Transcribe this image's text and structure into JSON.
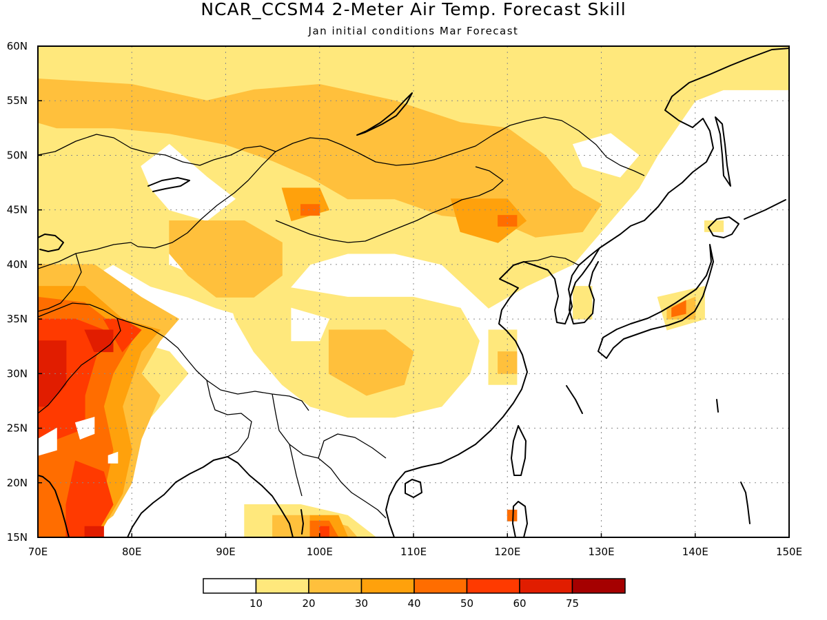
{
  "title": "NCAR_CCSM4 2-Meter Air Temp. Forecast Skill",
  "subtitle": "Jan initial conditions  Mar Forecast",
  "map": {
    "lon_range": [
      70,
      150
    ],
    "lat_range": [
      15,
      60
    ],
    "lon_ticks": [
      {
        "value": 70,
        "label": "70E"
      },
      {
        "value": 80,
        "label": "80E"
      },
      {
        "value": 90,
        "label": "90E"
      },
      {
        "value": 100,
        "label": "100E"
      },
      {
        "value": 110,
        "label": "110E"
      },
      {
        "value": 120,
        "label": "120E"
      },
      {
        "value": 130,
        "label": "130E"
      },
      {
        "value": 140,
        "label": "140E"
      },
      {
        "value": 150,
        "label": "150E"
      }
    ],
    "lat_ticks": [
      {
        "value": 15,
        "label": "15N"
      },
      {
        "value": 20,
        "label": "20N"
      },
      {
        "value": 25,
        "label": "25N"
      },
      {
        "value": 30,
        "label": "30N"
      },
      {
        "value": 35,
        "label": "35N"
      },
      {
        "value": 40,
        "label": "40N"
      },
      {
        "value": 45,
        "label": "45N"
      },
      {
        "value": 50,
        "label": "50N"
      },
      {
        "value": 55,
        "label": "55N"
      },
      {
        "value": 60,
        "label": "60N"
      }
    ],
    "gridlines": "dotted",
    "skill_patches": [
      {
        "level": 1,
        "ring": [
          [
            70,
            60
          ],
          [
            150,
            60
          ],
          [
            150,
            56
          ],
          [
            143,
            56
          ],
          [
            140,
            55
          ],
          [
            136,
            50
          ],
          [
            134,
            47
          ],
          [
            131,
            44
          ],
          [
            127,
            40
          ],
          [
            122,
            38
          ],
          [
            118,
            36
          ],
          [
            113,
            40
          ],
          [
            108,
            41
          ],
          [
            103,
            41
          ],
          [
            99,
            40
          ],
          [
            96,
            37
          ],
          [
            93,
            35
          ],
          [
            89,
            36
          ],
          [
            86,
            37
          ],
          [
            82,
            38
          ],
          [
            78,
            40
          ],
          [
            74,
            38
          ],
          [
            70,
            36
          ]
        ]
      },
      {
        "level": 0,
        "ring": [
          [
            81,
            49
          ],
          [
            84,
            51
          ],
          [
            88,
            48
          ],
          [
            91,
            46
          ],
          [
            88,
            44
          ],
          [
            84,
            45
          ],
          [
            82,
            47
          ]
        ]
      },
      {
        "level": 0,
        "ring": [
          [
            84,
            42
          ],
          [
            88,
            43
          ],
          [
            90,
            41
          ],
          [
            87,
            39
          ],
          [
            84,
            40
          ]
        ]
      },
      {
        "level": 0,
        "ring": [
          [
            127,
            51
          ],
          [
            131,
            52
          ],
          [
            134,
            50
          ],
          [
            132,
            48
          ],
          [
            128,
            49
          ]
        ]
      },
      {
        "level": 1,
        "ring": [
          [
            90,
            38
          ],
          [
            96,
            38
          ],
          [
            103,
            37
          ],
          [
            110,
            37
          ],
          [
            115,
            36
          ],
          [
            117,
            33
          ],
          [
            116,
            30
          ],
          [
            113,
            27
          ],
          [
            108,
            26
          ],
          [
            103,
            26
          ],
          [
            99,
            27
          ],
          [
            96,
            29
          ],
          [
            93,
            32
          ],
          [
            91,
            35
          ]
        ]
      },
      {
        "level": 0,
        "ring": [
          [
            97,
            36
          ],
          [
            101,
            35
          ],
          [
            100,
            33
          ],
          [
            97,
            33
          ]
        ]
      },
      {
        "level": 1,
        "ring": [
          [
            70,
            36
          ],
          [
            75,
            36
          ],
          [
            80,
            33
          ],
          [
            84,
            32
          ],
          [
            86,
            30
          ],
          [
            84,
            28
          ],
          [
            82,
            26
          ],
          [
            79,
            25
          ],
          [
            76,
            21
          ],
          [
            73,
            17
          ],
          [
            70,
            16
          ]
        ]
      },
      {
        "level": 1,
        "ring": [
          [
            92,
            18
          ],
          [
            98,
            18
          ],
          [
            103,
            17
          ],
          [
            106,
            15
          ],
          [
            92,
            15
          ]
        ]
      },
      {
        "level": 1,
        "ring": [
          [
            118,
            34
          ],
          [
            121,
            34
          ],
          [
            121,
            29
          ],
          [
            118,
            29
          ]
        ]
      },
      {
        "level": 1,
        "ring": [
          [
            127,
            38
          ],
          [
            129,
            38
          ],
          [
            129,
            35
          ],
          [
            127,
            35
          ]
        ]
      },
      {
        "level": 1,
        "ring": [
          [
            136,
            37
          ],
          [
            141,
            38
          ],
          [
            141,
            35
          ],
          [
            137,
            34
          ]
        ]
      },
      {
        "level": 1,
        "ring": [
          [
            141,
            44
          ],
          [
            143,
            44
          ],
          [
            143,
            43
          ],
          [
            141,
            43
          ]
        ]
      },
      {
        "level": 2,
        "ring": [
          [
            70,
            57
          ],
          [
            80,
            56.5
          ],
          [
            88,
            55
          ],
          [
            93,
            56
          ],
          [
            100,
            56.5
          ],
          [
            108,
            55
          ],
          [
            115,
            53
          ],
          [
            120,
            52.5
          ],
          [
            124,
            50
          ],
          [
            127,
            47
          ],
          [
            130,
            45.5
          ],
          [
            128,
            43
          ],
          [
            123,
            42.5
          ],
          [
            119,
            44
          ],
          [
            113,
            44.5
          ],
          [
            108,
            46
          ],
          [
            103,
            46
          ],
          [
            99,
            48
          ],
          [
            95,
            49.5
          ],
          [
            90,
            51
          ],
          [
            84,
            52
          ],
          [
            78,
            52.5
          ],
          [
            72,
            52.5
          ],
          [
            70,
            53
          ]
        ]
      },
      {
        "level": 2,
        "ring": [
          [
            84,
            44
          ],
          [
            92,
            44
          ],
          [
            96,
            42
          ],
          [
            96,
            39
          ],
          [
            93,
            37
          ],
          [
            89,
            37
          ],
          [
            86,
            39
          ],
          [
            84,
            41
          ]
        ]
      },
      {
        "level": 2,
        "ring": [
          [
            101,
            34
          ],
          [
            107,
            34
          ],
          [
            110,
            32
          ],
          [
            109,
            29
          ],
          [
            105,
            28
          ],
          [
            101,
            30
          ]
        ]
      },
      {
        "level": 2,
        "ring": [
          [
            70,
            40
          ],
          [
            76,
            40
          ],
          [
            81,
            37
          ],
          [
            85,
            35
          ],
          [
            83,
            33
          ],
          [
            81,
            30
          ],
          [
            83,
            28
          ],
          [
            81,
            24
          ],
          [
            80,
            20
          ],
          [
            78,
            17
          ],
          [
            75,
            15
          ],
          [
            70,
            15
          ]
        ]
      },
      {
        "level": 2,
        "ring": [
          [
            95,
            17
          ],
          [
            99,
            17
          ],
          [
            103,
            16
          ],
          [
            104,
            15
          ],
          [
            95,
            15
          ]
        ]
      },
      {
        "level": 2,
        "ring": [
          [
            119,
            32
          ],
          [
            121,
            32
          ],
          [
            121,
            30
          ],
          [
            119,
            30
          ]
        ]
      },
      {
        "level": 2,
        "ring": [
          [
            137,
            36
          ],
          [
            140,
            37
          ],
          [
            140,
            35
          ],
          [
            137,
            35
          ]
        ]
      },
      {
        "level": 3,
        "ring": [
          [
            96,
            47
          ],
          [
            100,
            47
          ],
          [
            101,
            45
          ],
          [
            97,
            44
          ]
        ]
      },
      {
        "level": 3,
        "ring": [
          [
            114,
            46
          ],
          [
            120,
            46
          ],
          [
            122,
            44
          ],
          [
            119,
            42
          ],
          [
            115,
            43
          ]
        ]
      },
      {
        "level": 3,
        "ring": [
          [
            70,
            38
          ],
          [
            75,
            38
          ],
          [
            79,
            35
          ],
          [
            83,
            34
          ],
          [
            81,
            32
          ],
          [
            79,
            27
          ],
          [
            80,
            23
          ],
          [
            79,
            19
          ],
          [
            77,
            16
          ],
          [
            75,
            15
          ],
          [
            70,
            15
          ]
        ]
      },
      {
        "level": 3,
        "ring": [
          [
            99,
            17
          ],
          [
            102,
            17
          ],
          [
            103,
            15
          ],
          [
            99,
            15
          ]
        ]
      },
      {
        "level": 4,
        "ring": [
          [
            70,
            37
          ],
          [
            75,
            36.5
          ],
          [
            78,
            34.5
          ],
          [
            80,
            33
          ],
          [
            78,
            30
          ],
          [
            77,
            27
          ],
          [
            78,
            23
          ],
          [
            77,
            19
          ],
          [
            75,
            16
          ],
          [
            73,
            15
          ],
          [
            70,
            15
          ]
        ]
      },
      {
        "level": 4,
        "ring": [
          [
            99,
            16.5
          ],
          [
            101,
            16.5
          ],
          [
            102,
            15
          ],
          [
            99,
            15
          ]
        ]
      },
      {
        "level": 4,
        "ring": [
          [
            98,
            45.5
          ],
          [
            100,
            45.5
          ],
          [
            100,
            44.5
          ],
          [
            98,
            44.5
          ]
        ]
      },
      {
        "level": 4,
        "ring": [
          [
            119,
            44.5
          ],
          [
            121,
            44.5
          ],
          [
            121,
            43.5
          ],
          [
            119,
            43.5
          ]
        ]
      },
      {
        "level": 4,
        "ring": [
          [
            120,
            17.5
          ],
          [
            121,
            17.5
          ],
          [
            121,
            16.5
          ],
          [
            120,
            16.5
          ]
        ]
      },
      {
        "level": 4,
        "ring": [
          [
            137.5,
            36
          ],
          [
            139,
            36.7
          ],
          [
            139,
            35.5
          ],
          [
            137.5,
            35.2
          ]
        ]
      },
      {
        "level": 5,
        "ring": [
          [
            70,
            35
          ],
          [
            74,
            35
          ],
          [
            77,
            34
          ],
          [
            76,
            31
          ],
          [
            75,
            28
          ],
          [
            75,
            25
          ],
          [
            72,
            24
          ],
          [
            70,
            24
          ]
        ]
      },
      {
        "level": 5,
        "ring": [
          [
            77,
            35
          ],
          [
            79,
            35
          ],
          [
            81,
            34
          ],
          [
            79,
            32
          ]
        ]
      },
      {
        "level": 5,
        "ring": [
          [
            74,
            22
          ],
          [
            77,
            21
          ],
          [
            78,
            18
          ],
          [
            76,
            15
          ],
          [
            73,
            15
          ],
          [
            73,
            18
          ]
        ]
      },
      {
        "level": 5,
        "ring": [
          [
            100,
            16
          ],
          [
            101,
            16
          ],
          [
            101,
            15
          ],
          [
            100,
            15
          ]
        ]
      },
      {
        "level": 6,
        "ring": [
          [
            70,
            33
          ],
          [
            73,
            33
          ],
          [
            73,
            29
          ],
          [
            71,
            27
          ],
          [
            70,
            27
          ]
        ]
      },
      {
        "level": 6,
        "ring": [
          [
            75,
            34
          ],
          [
            78,
            34
          ],
          [
            78,
            32
          ],
          [
            76,
            32
          ]
        ]
      },
      {
        "level": 6,
        "ring": [
          [
            75,
            16
          ],
          [
            77,
            16
          ],
          [
            77,
            15
          ],
          [
            75,
            15
          ]
        ]
      },
      {
        "level": 0,
        "ring": [
          [
            74,
            25.5
          ],
          [
            76,
            26
          ],
          [
            76,
            24.5
          ],
          [
            74.5,
            24
          ]
        ]
      },
      {
        "level": 0,
        "ring": [
          [
            70,
            24
          ],
          [
            72,
            25
          ],
          [
            72,
            23
          ],
          [
            70,
            22.5
          ]
        ]
      },
      {
        "level": 0,
        "ring": [
          [
            77.5,
            22.5
          ],
          [
            78.5,
            22.8
          ],
          [
            78.5,
            21.8
          ],
          [
            77.5,
            21.8
          ]
        ]
      }
    ]
  },
  "legend": {
    "levels": [
      0,
      10,
      20,
      30,
      40,
      50,
      60,
      75
    ],
    "labels": [
      "10",
      "20",
      "30",
      "40",
      "50",
      "60",
      "75"
    ],
    "colors": [
      "#ffffff",
      "#ffe87c",
      "#ffc03c",
      "#ffa10c",
      "#ff6d00",
      "#ff3a00",
      "#e11d00",
      "#a50000"
    ]
  }
}
